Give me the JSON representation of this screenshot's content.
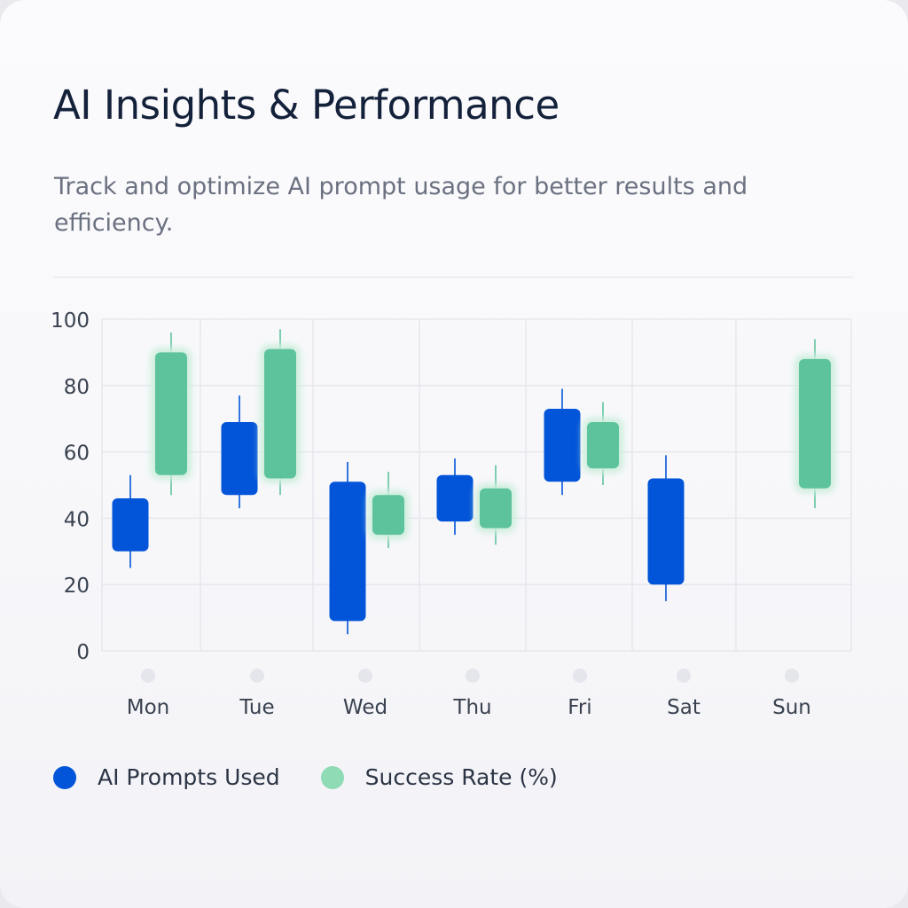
{
  "title": "AI Insights & Performance",
  "subtitle": "Track and optimize AI prompt usage for better results and efficiency.",
  "colors": {
    "prompts": "#0254d8",
    "success": "#5dc39c",
    "success_glow": "#cdeedd",
    "legend_success": "#8edbb6",
    "grid": "#e6e7ed",
    "axis_text": "#3a4250",
    "day_dot": "#e5e6ec"
  },
  "legend": [
    {
      "label": "AI Prompts Used",
      "color": "#0254d8"
    },
    {
      "label": "Success Rate (%)",
      "color": "#8edbb6"
    }
  ],
  "chart_data": {
    "type": "candlestick",
    "categories": [
      "Mon",
      "Tue",
      "Wed",
      "Thu",
      "Fri",
      "Sat",
      "Sun"
    ],
    "ylim": [
      0,
      100
    ],
    "yticks": [
      0,
      20,
      40,
      60,
      80,
      100
    ],
    "grid": true,
    "legend_position": "bottom",
    "series": [
      {
        "name": "AI Prompts Used",
        "candles": [
          {
            "x": "Mon",
            "open": 30,
            "close": 46,
            "low": 25,
            "high": 53
          },
          {
            "x": "Tue",
            "open": 47,
            "close": 69,
            "low": 43,
            "high": 77
          },
          {
            "x": "Wed",
            "open": 9,
            "close": 51,
            "low": 5,
            "high": 57
          },
          {
            "x": "Thu",
            "open": 39,
            "close": 53,
            "low": 35,
            "high": 58
          },
          {
            "x": "Fri",
            "open": 51,
            "close": 73,
            "low": 47,
            "high": 79
          },
          {
            "x": "Sat",
            "open": 20,
            "close": 52,
            "low": 15,
            "high": 59
          },
          {
            "x": "Sun",
            "open": null,
            "close": null,
            "low": null,
            "high": null
          }
        ]
      },
      {
        "name": "Success Rate (%)",
        "candles": [
          {
            "x": "Mon",
            "open": 53,
            "close": 90,
            "low": 47,
            "high": 96
          },
          {
            "x": "Tue",
            "open": 52,
            "close": 91,
            "low": 47,
            "high": 97
          },
          {
            "x": "Wed",
            "open": 35,
            "close": 47,
            "low": 31,
            "high": 54
          },
          {
            "x": "Thu",
            "open": 37,
            "close": 49,
            "low": 32,
            "high": 56
          },
          {
            "x": "Fri",
            "open": 55,
            "close": 69,
            "low": 50,
            "high": 75
          },
          {
            "x": "Sat",
            "open": null,
            "close": null,
            "low": null,
            "high": null
          },
          {
            "x": "Sun",
            "open": 49,
            "close": 88,
            "low": 43,
            "high": 94
          }
        ]
      }
    ]
  }
}
